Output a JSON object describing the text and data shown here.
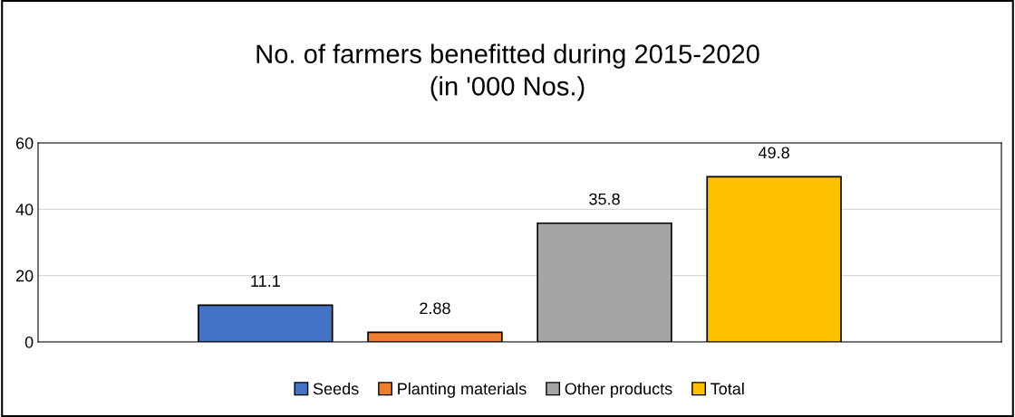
{
  "chart_data": {
    "type": "bar",
    "title": "No. of farmers benefitted during 2015-2020\n(in '000 Nos.)",
    "categories": [
      null
    ],
    "series": [
      {
        "name": "Seeds",
        "color": "#4472c4",
        "values": [
          11.1
        ]
      },
      {
        "name": "Planting materials",
        "color": "#ed7d31",
        "values": [
          2.88
        ]
      },
      {
        "name": "Other products",
        "color": "#a5a5a5",
        "values": [
          35.8
        ]
      },
      {
        "name": "Total",
        "color": "#ffc000",
        "values": [
          49.8
        ]
      }
    ],
    "ylim": [
      0,
      60
    ],
    "yticks": [
      0,
      20,
      40,
      60
    ],
    "grid": "y",
    "legend": "bottom",
    "data_labels": true
  }
}
